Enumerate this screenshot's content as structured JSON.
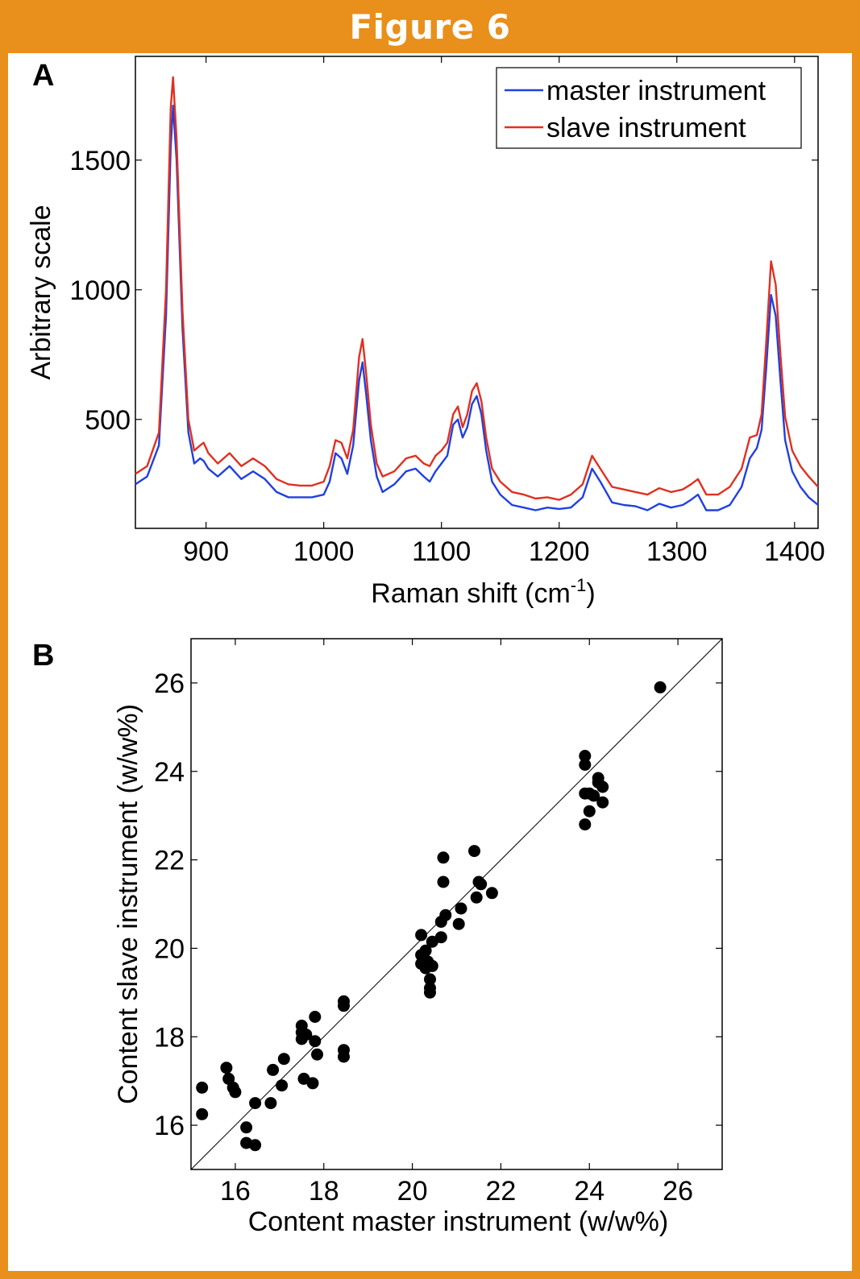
{
  "figure": {
    "title": "Figure 6",
    "colors": {
      "frame": "#e8901b",
      "title_text": "#ffffff",
      "panel": "#ffffff"
    }
  },
  "chart_data": [
    {
      "panel_label": "A",
      "type": "line",
      "title": "",
      "xlabel": "Raman shift (cm",
      "xlabel_sup": "-1",
      "xlabel_suffix": ")",
      "ylabel": "Arbitrary scale",
      "xlim": [
        840,
        1420
      ],
      "ylim": [
        80,
        1900
      ],
      "xticks": [
        900,
        1000,
        1100,
        1200,
        1300,
        1400
      ],
      "yticks": [
        500,
        1000,
        1500
      ],
      "grid": false,
      "legend_position": "top-right",
      "x": [
        840,
        850,
        860,
        866,
        870,
        872,
        875,
        880,
        885,
        890,
        895,
        898,
        902,
        910,
        920,
        930,
        940,
        950,
        960,
        970,
        980,
        990,
        1000,
        1005,
        1010,
        1015,
        1020,
        1025,
        1030,
        1033,
        1036,
        1040,
        1045,
        1050,
        1060,
        1070,
        1078,
        1085,
        1090,
        1095,
        1100,
        1105,
        1110,
        1114,
        1118,
        1122,
        1126,
        1130,
        1134,
        1138,
        1143,
        1150,
        1160,
        1170,
        1180,
        1190,
        1200,
        1210,
        1220,
        1228,
        1235,
        1245,
        1255,
        1265,
        1275,
        1285,
        1295,
        1305,
        1312,
        1318,
        1325,
        1335,
        1345,
        1355,
        1362,
        1368,
        1372,
        1376,
        1380,
        1384,
        1388,
        1392,
        1398,
        1405,
        1412,
        1420
      ],
      "series": [
        {
          "name": "master instrument",
          "color": "#2040e0",
          "values": [
            250,
            280,
            400,
            900,
            1550,
            1710,
            1500,
            850,
            450,
            330,
            350,
            340,
            310,
            280,
            320,
            270,
            300,
            270,
            220,
            200,
            200,
            200,
            210,
            260,
            370,
            350,
            290,
            400,
            650,
            720,
            600,
            420,
            280,
            220,
            250,
            300,
            310,
            280,
            260,
            300,
            330,
            360,
            480,
            500,
            430,
            470,
            560,
            590,
            520,
            380,
            260,
            210,
            170,
            160,
            150,
            160,
            155,
            160,
            200,
            310,
            260,
            180,
            170,
            165,
            150,
            175,
            160,
            170,
            190,
            210,
            150,
            150,
            170,
            240,
            350,
            390,
            460,
            700,
            980,
            900,
            650,
            420,
            300,
            240,
            200,
            170
          ]
        },
        {
          "name": "slave instrument",
          "color": "#e03020",
          "values": [
            290,
            320,
            450,
            1000,
            1700,
            1820,
            1580,
            920,
            500,
            380,
            400,
            410,
            370,
            330,
            370,
            320,
            350,
            320,
            270,
            250,
            245,
            245,
            260,
            320,
            420,
            410,
            350,
            460,
            740,
            810,
            680,
            480,
            330,
            280,
            300,
            350,
            360,
            330,
            320,
            360,
            380,
            410,
            520,
            550,
            470,
            520,
            610,
            640,
            570,
            430,
            310,
            260,
            220,
            210,
            195,
            200,
            190,
            210,
            250,
            360,
            310,
            240,
            230,
            220,
            210,
            235,
            220,
            230,
            250,
            270,
            210,
            210,
            240,
            310,
            430,
            440,
            520,
            800,
            1110,
            1020,
            750,
            510,
            380,
            320,
            280,
            240
          ]
        }
      ]
    },
    {
      "panel_label": "B",
      "type": "scatter",
      "title": "",
      "xlabel": "Content master instrument (w/w%)",
      "ylabel": "Content slave instrument (w/w%)",
      "xlim": [
        15,
        27
      ],
      "ylim": [
        15,
        27
      ],
      "xticks": [
        16,
        18,
        20,
        22,
        24,
        26
      ],
      "yticks": [
        16,
        18,
        20,
        22,
        24,
        26
      ],
      "grid": false,
      "reference_line": "y = x",
      "marker_color": "#000000",
      "points": [
        [
          25.6,
          25.9
        ],
        [
          23.9,
          24.35
        ],
        [
          23.9,
          24.15
        ],
        [
          24.2,
          23.85
        ],
        [
          24.2,
          23.75
        ],
        [
          24.3,
          23.65
        ],
        [
          24.0,
          23.5
        ],
        [
          23.9,
          23.5
        ],
        [
          24.1,
          23.45
        ],
        [
          24.3,
          23.3
        ],
        [
          24.0,
          23.1
        ],
        [
          23.9,
          22.8
        ],
        [
          21.4,
          22.2
        ],
        [
          20.7,
          22.05
        ],
        [
          20.7,
          21.5
        ],
        [
          21.5,
          21.5
        ],
        [
          21.55,
          21.45
        ],
        [
          21.8,
          21.25
        ],
        [
          21.45,
          21.15
        ],
        [
          21.1,
          20.9
        ],
        [
          20.75,
          20.75
        ],
        [
          20.65,
          20.6
        ],
        [
          21.05,
          20.55
        ],
        [
          20.65,
          20.25
        ],
        [
          20.2,
          20.3
        ],
        [
          20.45,
          20.15
        ],
        [
          20.3,
          19.95
        ],
        [
          20.2,
          19.85
        ],
        [
          20.25,
          19.75
        ],
        [
          20.2,
          19.65
        ],
        [
          20.35,
          19.7
        ],
        [
          20.45,
          19.6
        ],
        [
          20.3,
          19.55
        ],
        [
          20.4,
          19.3
        ],
        [
          20.4,
          19.1
        ],
        [
          20.4,
          19.0
        ],
        [
          18.45,
          18.8
        ],
        [
          18.45,
          18.7
        ],
        [
          17.8,
          18.45
        ],
        [
          17.5,
          18.25
        ],
        [
          17.5,
          18.1
        ],
        [
          17.6,
          18.05
        ],
        [
          17.5,
          17.95
        ],
        [
          17.8,
          17.9
        ],
        [
          17.85,
          17.6
        ],
        [
          18.45,
          17.7
        ],
        [
          18.45,
          17.55
        ],
        [
          17.1,
          17.5
        ],
        [
          16.85,
          17.25
        ],
        [
          17.55,
          17.05
        ],
        [
          17.75,
          16.95
        ],
        [
          17.05,
          16.9
        ],
        [
          15.8,
          17.3
        ],
        [
          15.85,
          17.05
        ],
        [
          15.95,
          16.85
        ],
        [
          16.0,
          16.75
        ],
        [
          15.25,
          16.85
        ],
        [
          15.25,
          16.25
        ],
        [
          16.45,
          16.5
        ],
        [
          16.8,
          16.5
        ],
        [
          16.25,
          15.95
        ],
        [
          16.25,
          15.6
        ],
        [
          16.45,
          15.55
        ]
      ]
    }
  ]
}
